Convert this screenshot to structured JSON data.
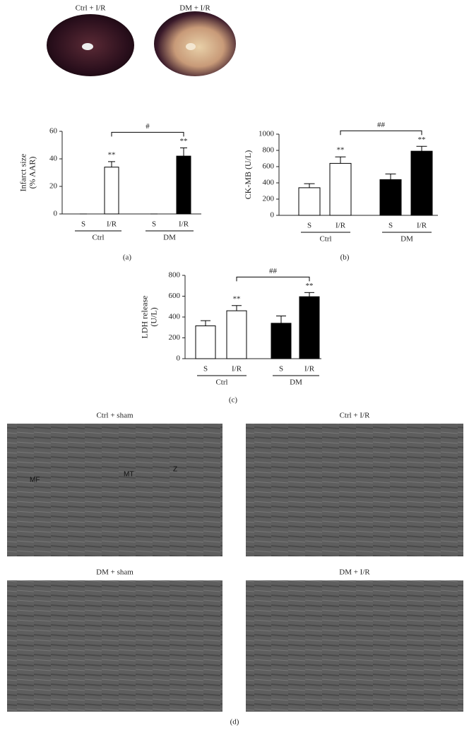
{
  "photos": [
    "Ctrl + I/R",
    "DM + I/R"
  ],
  "chart_data": [
    {
      "type": "bar",
      "panel_label": "(a)",
      "ylabel": [
        "Infarct size",
        "(% AAR)"
      ],
      "categories": [
        "S",
        "I/R",
        "S",
        "I/R"
      ],
      "groups": [
        "Ctrl",
        "DM"
      ],
      "values": [
        0,
        34,
        0,
        42
      ],
      "errors": [
        0,
        4,
        0,
        6
      ],
      "colors": [
        "#ffffff",
        "#ffffff",
        "#000000",
        "#000000"
      ],
      "annotations": [
        null,
        "**",
        null,
        "**"
      ],
      "bracket_label": "#",
      "ylim": [
        0,
        60
      ],
      "yticks": [
        0,
        20,
        40,
        60
      ]
    },
    {
      "type": "bar",
      "panel_label": "(b)",
      "ylabel": [
        "CK-MB (U/L)"
      ],
      "categories": [
        "S",
        "I/R",
        "S",
        "I/R"
      ],
      "groups": [
        "Ctrl",
        "DM"
      ],
      "values": [
        340,
        640,
        440,
        790
      ],
      "errors": [
        50,
        80,
        70,
        60
      ],
      "colors": [
        "#ffffff",
        "#ffffff",
        "#000000",
        "#000000"
      ],
      "annotations": [
        null,
        "**",
        null,
        "**"
      ],
      "bracket_label": "##",
      "ylim": [
        0,
        1000
      ],
      "yticks": [
        0,
        200,
        400,
        600,
        800,
        1000
      ]
    },
    {
      "type": "bar",
      "panel_label": "(c)",
      "ylabel": [
        "LDH release",
        "(U/L)"
      ],
      "categories": [
        "S",
        "I/R",
        "S",
        "I/R"
      ],
      "groups": [
        "Ctrl",
        "DM"
      ],
      "values": [
        315,
        460,
        340,
        595
      ],
      "errors": [
        50,
        50,
        70,
        40
      ],
      "colors": [
        "#ffffff",
        "#ffffff",
        "#000000",
        "#000000"
      ],
      "annotations": [
        null,
        "**",
        null,
        "**"
      ],
      "bracket_label": "##",
      "ylim": [
        0,
        800
      ],
      "yticks": [
        0,
        200,
        400,
        600,
        800
      ]
    }
  ],
  "micrographs": [
    {
      "title": "Ctrl + sham",
      "labels": [
        "MF",
        "MT",
        "Z"
      ]
    },
    {
      "title": "Ctrl + I/R",
      "labels": []
    },
    {
      "title": "DM + sham",
      "labels": []
    },
    {
      "title": "DM + I/R",
      "labels": []
    }
  ],
  "micrograph_panel_label": "(d)"
}
